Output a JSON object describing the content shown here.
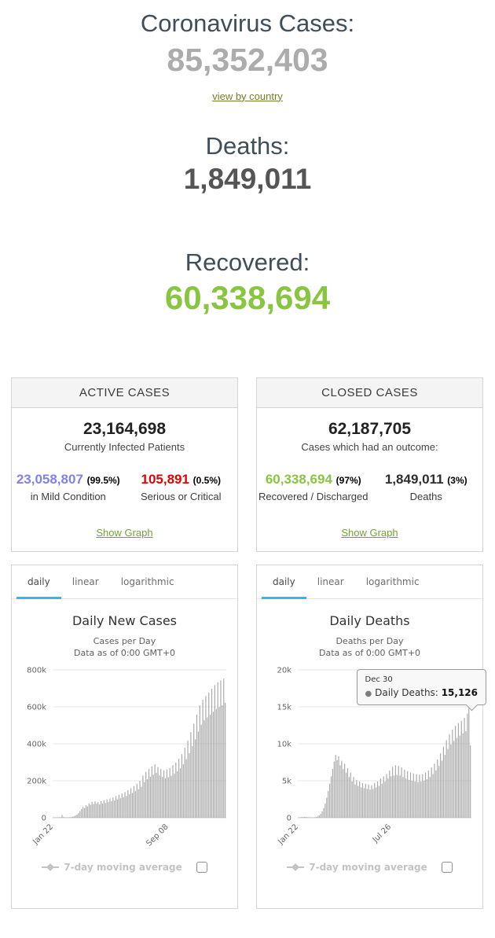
{
  "top": {
    "cases_label": "Coronavirus Cases:",
    "cases_number": "85,352,403",
    "view_by_country": "view by country",
    "deaths_label": "Deaths:",
    "deaths_number": "1,849,011",
    "recovered_label": "Recovered:",
    "recovered_number": "60,338,694"
  },
  "active_panel": {
    "title": "ACTIVE CASES",
    "number": "23,164,698",
    "caption": "Currently Infected Patients",
    "mild_number": "23,058,807",
    "mild_pct": "(99.5%)",
    "mild_caption": "in Mild Condition",
    "serious_number": "105,891",
    "serious_pct": "(0.5%)",
    "serious_caption": "Serious or Critical",
    "show_graph": "Show Graph"
  },
  "closed_panel": {
    "title": "CLOSED CASES",
    "number": "62,187,705",
    "caption": "Cases which had an outcome:",
    "recovered_number": "60,338,694",
    "recovered_pct": "(97%)",
    "recovered_caption": "Recovered / Discharged",
    "deaths_number": "1,849,011",
    "deaths_pct": "(3%)",
    "deaths_caption": "Deaths",
    "show_graph": "Show Graph"
  },
  "colors": {
    "bar": "#a9a9a9",
    "grid": "#e6e6e6",
    "axis_line": "#cccccc",
    "axis_text": "#666666",
    "tab_accent": "#35b7ee",
    "recovered_green": "#8ac541",
    "mild_blue": "#8080f0",
    "serious_red": "#e60000"
  },
  "chart_data": [
    {
      "type": "bar",
      "tabs": [
        "daily",
        "linear",
        "logarithmic"
      ],
      "active_tab": "daily",
      "title": "Daily New Cases",
      "subtitle1": "Cases per Day",
      "subtitle2": "Data as of 0:00 GMT+0",
      "legend_label": "7-day moving average",
      "ylim": [
        0,
        800000
      ],
      "yticks": [
        "0",
        "200k",
        "400k",
        "600k",
        "800k"
      ],
      "xticks": [
        {
          "index": 0,
          "label": "Jan 22"
        },
        {
          "index": 77,
          "label": "Sep 08"
        }
      ],
      "grid": true,
      "legend_position": "bottom",
      "values": [
        300,
        600,
        1500,
        2500,
        3200,
        2800,
        15000,
        4000,
        2200,
        1600,
        1800,
        2400,
        3500,
        5000,
        8000,
        12000,
        18000,
        26000,
        36000,
        47000,
        58000,
        52000,
        68000,
        61000,
        78000,
        70000,
        86000,
        74000,
        88000,
        76000,
        84000,
        72000,
        90000,
        77000,
        94000,
        80000,
        99000,
        85000,
        104000,
        89000,
        110000,
        93000,
        117000,
        99000,
        124000,
        105000,
        131000,
        111000,
        139000,
        117000,
        149000,
        127000,
        159000,
        134000,
        171000,
        144000,
        184000,
        154000,
        199000,
        167000,
        228000,
        193000,
        248000,
        208000,
        263000,
        222000,
        278000,
        233000,
        289000,
        243000,
        274000,
        229000,
        264000,
        221000,
        257000,
        214000,
        261000,
        219000,
        269000,
        227000,
        284000,
        239000,
        299000,
        251000,
        319000,
        267000,
        344000,
        289000,
        379000,
        317000,
        418000,
        349000,
        463000,
        388000,
        508000,
        424000,
        558000,
        466000,
        608000,
        503000,
        638000,
        528000,
        658000,
        543000,
        678000,
        558000,
        698000,
        573000,
        718000,
        588000,
        733000,
        598000,
        743000,
        608000,
        753000,
        622000
      ]
    },
    {
      "type": "bar",
      "tabs": [
        "daily",
        "linear",
        "logarithmic"
      ],
      "active_tab": "daily",
      "title": "Daily Deaths",
      "subtitle1": "Deaths per Day",
      "subtitle2": "Data as of 0:00 GMT+0",
      "legend_label": "7-day moving average",
      "ylim": [
        0,
        20000
      ],
      "yticks": [
        "0",
        "5k",
        "10k",
        "15k",
        "20k"
      ],
      "xticks": [
        {
          "index": 0,
          "label": "Jan 22"
        },
        {
          "index": 62,
          "label": "Jul 26"
        }
      ],
      "grid": true,
      "legend_position": "bottom",
      "tooltip": {
        "date": "Dec 30",
        "label": "Daily Deaths:",
        "value": "15,126"
      },
      "values": [
        30,
        50,
        80,
        100,
        110,
        100,
        90,
        75,
        60,
        50,
        45,
        65,
        110,
        190,
        320,
        520,
        850,
        1300,
        1900,
        2700,
        3600,
        4600,
        5600,
        6600,
        7600,
        8500,
        7800,
        8300,
        7100,
        7700,
        6600,
        7300,
        6100,
        6700,
        5500,
        6100,
        4900,
        5500,
        4500,
        5100,
        4300,
        4900,
        4100,
        4700,
        4000,
        4600,
        3900,
        4500,
        3800,
        4400,
        3900,
        4700,
        4100,
        4900,
        4300,
        5300,
        4600,
        5600,
        4900,
        5900,
        5300,
        6400,
        5600,
        6900,
        5700,
        7100,
        5800,
        7000,
        5700,
        6800,
        5500,
        6500,
        5300,
        6300,
        5100,
        6100,
        5000,
        6000,
        4900,
        5900,
        4800,
        5800,
        4900,
        5900,
        5000,
        6100,
        5200,
        6400,
        5500,
        6800,
        5900,
        7300,
        6400,
        7900,
        7000,
        8700,
        7700,
        9600,
        8500,
        10500,
        9300,
        11300,
        9900,
        11900,
        10400,
        12400,
        10800,
        12800,
        11100,
        13100,
        11400,
        13500,
        11700,
        14100,
        15126,
        9800
      ]
    }
  ]
}
